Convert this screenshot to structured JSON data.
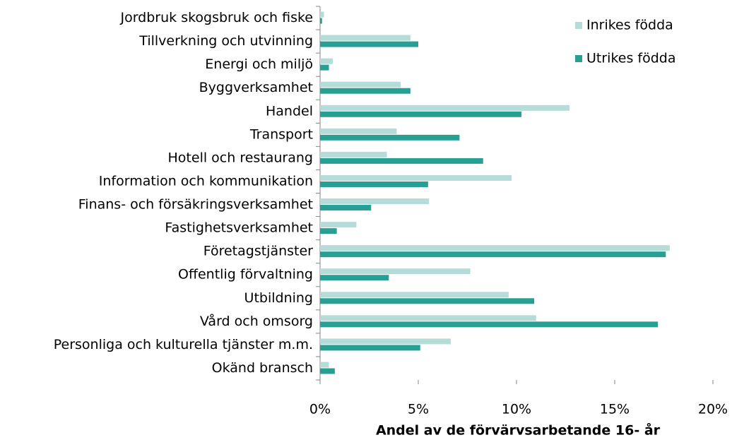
{
  "chart_data": {
    "type": "bar",
    "orientation": "horizontal",
    "categories": [
      "Jordbruk skogsbruk och fiske",
      "Tillverkning och utvinning",
      "Energi och miljö",
      "Byggverksamhet",
      "Handel",
      "Transport",
      "Hotell och restaurang",
      "Information och kommunikation",
      "Finans- och försäkringsverksamhet",
      "Fastighetsverksamhet",
      "Företagstjänster",
      "Offentlig förvaltning",
      "Utbildning",
      "Vård och omsorg",
      "Personliga och kulturella tjänster m.m.",
      "Okänd bransch"
    ],
    "series": [
      {
        "name": "Inrikes födda",
        "color": "#b5dcd8",
        "values": [
          0.2,
          4.6,
          0.65,
          4.1,
          12.7,
          3.9,
          3.4,
          9.75,
          5.55,
          1.85,
          17.8,
          7.65,
          9.6,
          11.0,
          6.65,
          0.45
        ]
      },
      {
        "name": "Utrikes födda",
        "color": "#27a093",
        "values": [
          0.1,
          5.0,
          0.45,
          4.6,
          10.25,
          7.1,
          8.3,
          5.5,
          2.6,
          0.85,
          17.6,
          3.5,
          10.9,
          17.2,
          5.1,
          0.75
        ]
      }
    ],
    "xlim": [
      0,
      20
    ],
    "xticks": [
      {
        "value": 0,
        "label": "0%"
      },
      {
        "value": 5,
        "label": "5%"
      },
      {
        "value": 10,
        "label": "10%"
      },
      {
        "value": 15,
        "label": "15%"
      },
      {
        "value": 20,
        "label": "20%"
      }
    ],
    "x_label": "Andel av de förvärvsarbetande 16- år",
    "legend": "top-right"
  }
}
